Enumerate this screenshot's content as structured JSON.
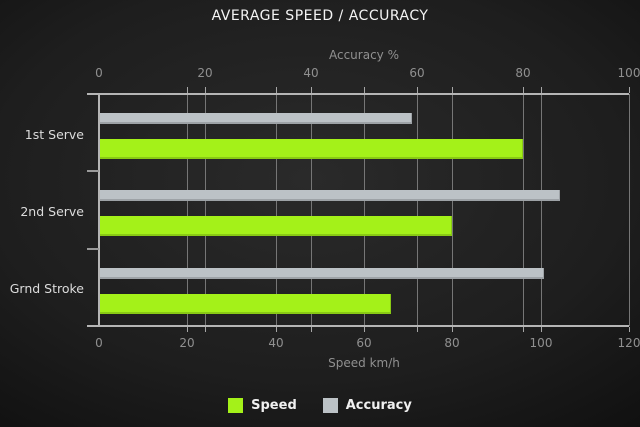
{
  "chart_data": {
    "type": "bar",
    "orientation": "horizontal",
    "title": "AVERAGE SPEED / ACCURACY",
    "categories": [
      "1st Serve",
      "2nd Serve",
      "Grnd Stroke"
    ],
    "series": [
      {
        "name": "Speed",
        "axis": "bottom",
        "color": "#a4f119",
        "values": [
          96,
          80,
          66
        ]
      },
      {
        "name": "Accuracy",
        "axis": "top",
        "color": "#bcc2c6",
        "values": [
          59,
          87,
          84
        ]
      }
    ],
    "top_axis": {
      "label": "Accuracy %",
      "min": 0,
      "max": 100,
      "ticks": [
        0,
        20,
        40,
        60,
        80,
        100
      ]
    },
    "bottom_axis": {
      "label": "Speed km/h",
      "min": 0,
      "max": 120,
      "ticks": [
        0,
        20,
        40,
        60,
        80,
        100,
        120
      ]
    },
    "grid": true,
    "legend": {
      "position": "bottom",
      "items": [
        {
          "label": "Speed",
          "color": "#a4f119"
        },
        {
          "label": "Accuracy",
          "color": "#bcc2c6"
        }
      ]
    }
  }
}
